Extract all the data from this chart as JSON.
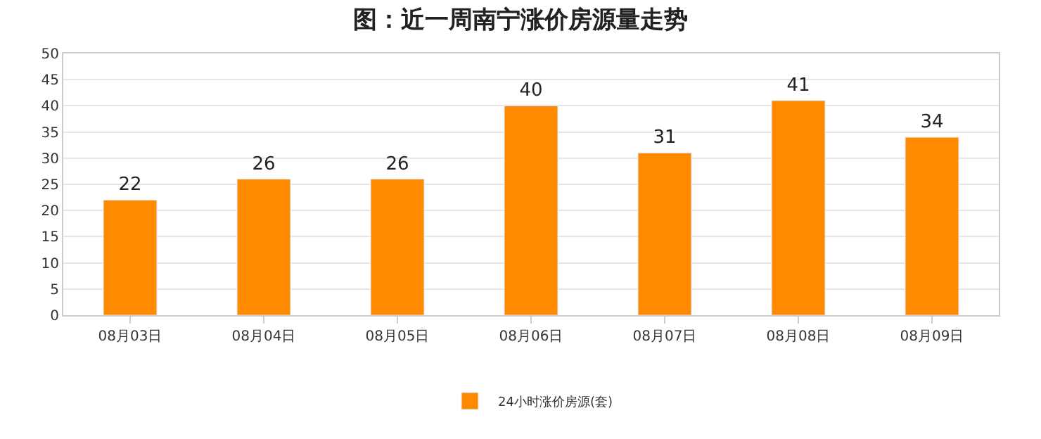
{
  "chart_data": {
    "type": "bar",
    "title": "图：近一周南宁涨价房源量走势",
    "categories": [
      "08月03日",
      "08月04日",
      "08月05日",
      "08月06日",
      "08月07日",
      "08月08日",
      "08月09日"
    ],
    "series": [
      {
        "name": "24小时涨价房源(套)",
        "color": "#ff8a00",
        "values": [
          22,
          26,
          26,
          40,
          31,
          41,
          34
        ]
      }
    ],
    "ylim": [
      0,
      50
    ],
    "yticks": [
      0,
      5,
      10,
      15,
      20,
      25,
      30,
      35,
      40,
      45,
      50
    ],
    "grid": "y",
    "legend": "bottom",
    "data_labels": true
  }
}
